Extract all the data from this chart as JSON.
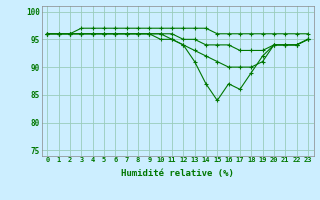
{
  "x": [
    0,
    1,
    2,
    3,
    4,
    5,
    6,
    7,
    8,
    9,
    10,
    11,
    12,
    13,
    14,
    15,
    16,
    17,
    18,
    19,
    20,
    21,
    22,
    23
  ],
  "line1": [
    96,
    96,
    96,
    97,
    97,
    97,
    97,
    97,
    97,
    97,
    97,
    97,
    97,
    97,
    97,
    96,
    96,
    96,
    96,
    96,
    96,
    96,
    96,
    96
  ],
  "line2": [
    96,
    96,
    96,
    96,
    96,
    96,
    96,
    96,
    96,
    96,
    95,
    95,
    94,
    91,
    87,
    84,
    87,
    86,
    89,
    92,
    94,
    94,
    94,
    95
  ],
  "line3": [
    96,
    96,
    96,
    96,
    96,
    96,
    96,
    96,
    96,
    96,
    96,
    95,
    94,
    93,
    92,
    91,
    90,
    90,
    90,
    91,
    94,
    94,
    94,
    95
  ],
  "line4": [
    96,
    96,
    96,
    96,
    96,
    96,
    96,
    96,
    96,
    96,
    96,
    96,
    95,
    95,
    94,
    94,
    94,
    93,
    93,
    93,
    94,
    94,
    94,
    95
  ],
  "bg_color": "#cceeff",
  "grid_color": "#99ccbb",
  "line_color": "#007700",
  "xlabel": "Humidité relative (%)",
  "ylim": [
    74,
    101
  ],
  "yticks": [
    75,
    80,
    85,
    90,
    95,
    100
  ],
  "xlim": [
    -0.5,
    23.5
  ],
  "tick_fontsize": 5.0,
  "xlabel_fontsize": 6.5
}
